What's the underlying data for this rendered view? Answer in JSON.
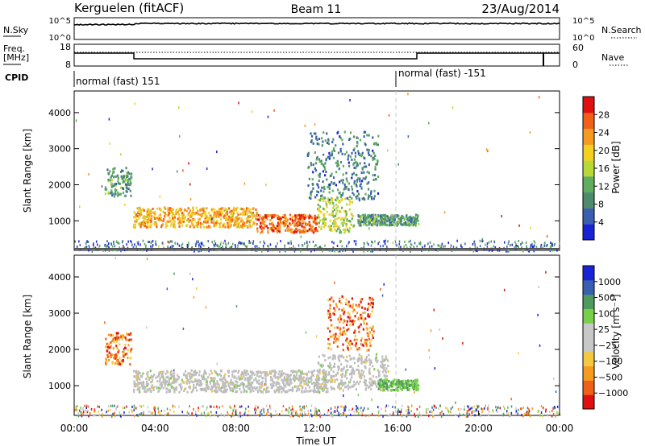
{
  "header": {
    "station": "Kerguelen (fitACF)",
    "beam": "Beam 11",
    "date": "23/Aug/2014"
  },
  "noise_panel": {
    "left_label": "N.Sky",
    "right_label": "N.Search",
    "left_ticks": [
      "10^5",
      "10^0"
    ],
    "right_ticks": [
      "10^5",
      "10^0"
    ]
  },
  "freq_panel": {
    "left_label_line1": "Freq.",
    "left_label_line2": "[MHz]",
    "right_label": "Nave",
    "left_ticks": [
      "18",
      "8"
    ],
    "right_ticks": [
      "60",
      "0"
    ]
  },
  "cpid": {
    "label": "CPID",
    "segments": [
      "normal (fast) 151",
      "normal (fast) -151"
    ]
  },
  "time_axis": {
    "label": "Time UT",
    "ticks": [
      "00:00",
      "04:00",
      "08:00",
      "12:00",
      "16:00",
      "20:00",
      "00:00"
    ]
  },
  "colors": {
    "power_scale": [
      "#1a22d6",
      "#3a5fb0",
      "#4f8a6c",
      "#5fae5f",
      "#b8d838",
      "#f5d020",
      "#f59b20",
      "#f06018",
      "#e01010"
    ],
    "velocity_scale": [
      "#e01010",
      "#f06018",
      "#f59b20",
      "#f5c840",
      "#c8c8c8",
      "#c8c8c8",
      "#78d048",
      "#4f9a5c",
      "#3a5fb0",
      "#1a22d6"
    ],
    "ground_scatter": "#bdbdbd"
  },
  "chart_data": [
    {
      "type": "heatmap",
      "title": "",
      "xlabel": "Time UT",
      "ylabel": "Slant Range [km]",
      "xlim": [
        "00:00",
        "24:00"
      ],
      "ylim": [
        180,
        4600
      ],
      "y_ticks": [
        "1000",
        "2000",
        "3000",
        "4000"
      ],
      "colorbar": {
        "label": "Power [dB]",
        "ticks": [
          "4",
          "8",
          "12",
          "16",
          "20",
          "24",
          "28"
        ],
        "range": [
          0,
          32
        ]
      },
      "scatter_regions": [
        {
          "start_hour": 1.5,
          "end_hour": 2.8,
          "range_low_km": 1700,
          "range_high_km": 2500,
          "power_db": 10
        },
        {
          "start_hour": 2.9,
          "end_hour": 9.0,
          "range_low_km": 850,
          "range_high_km": 1400,
          "power_db": 22
        },
        {
          "start_hour": 9.0,
          "end_hour": 12.0,
          "range_low_km": 700,
          "range_high_km": 1200,
          "power_db": 26
        },
        {
          "start_hour": 12.0,
          "end_hour": 13.8,
          "range_low_km": 700,
          "range_high_km": 1700,
          "power_db": 16
        },
        {
          "start_hour": 11.5,
          "end_hour": 15.0,
          "range_low_km": 1600,
          "range_high_km": 3500,
          "power_db": 8
        },
        {
          "start_hour": 14.0,
          "end_hour": 17.0,
          "range_low_km": 900,
          "range_high_km": 1200,
          "power_db": 10
        }
      ]
    },
    {
      "type": "heatmap",
      "title": "",
      "xlabel": "Time UT",
      "ylabel": "Slant Range [km]",
      "xlim": [
        "00:00",
        "24:00"
      ],
      "ylim": [
        180,
        4600
      ],
      "y_ticks": [
        "1000",
        "2000",
        "3000",
        "4000"
      ],
      "colorbar": {
        "label": "Velocity [m s⁻¹]",
        "ticks": [
          "1000",
          "500",
          "100",
          "25",
          "−25",
          "−100",
          "−500",
          "−1000"
        ]
      },
      "scatter_regions": [
        {
          "start_hour": 1.5,
          "end_hour": 2.8,
          "range_low_km": 1600,
          "range_high_km": 2500,
          "velocity_ms": -150
        },
        {
          "start_hour": 2.9,
          "end_hour": 12.5,
          "range_low_km": 850,
          "range_high_km": 1450,
          "velocity_ms": 0
        },
        {
          "start_hour": 12.0,
          "end_hour": 15.5,
          "range_low_km": 900,
          "range_high_km": 1900,
          "velocity_ms": 0
        },
        {
          "start_hour": 12.5,
          "end_hour": 14.8,
          "range_low_km": 2000,
          "range_high_km": 3500,
          "velocity_ms": -200
        },
        {
          "start_hour": 15.0,
          "end_hour": 17.0,
          "range_low_km": 900,
          "range_high_km": 1200,
          "velocity_ms": 80
        }
      ]
    }
  ]
}
